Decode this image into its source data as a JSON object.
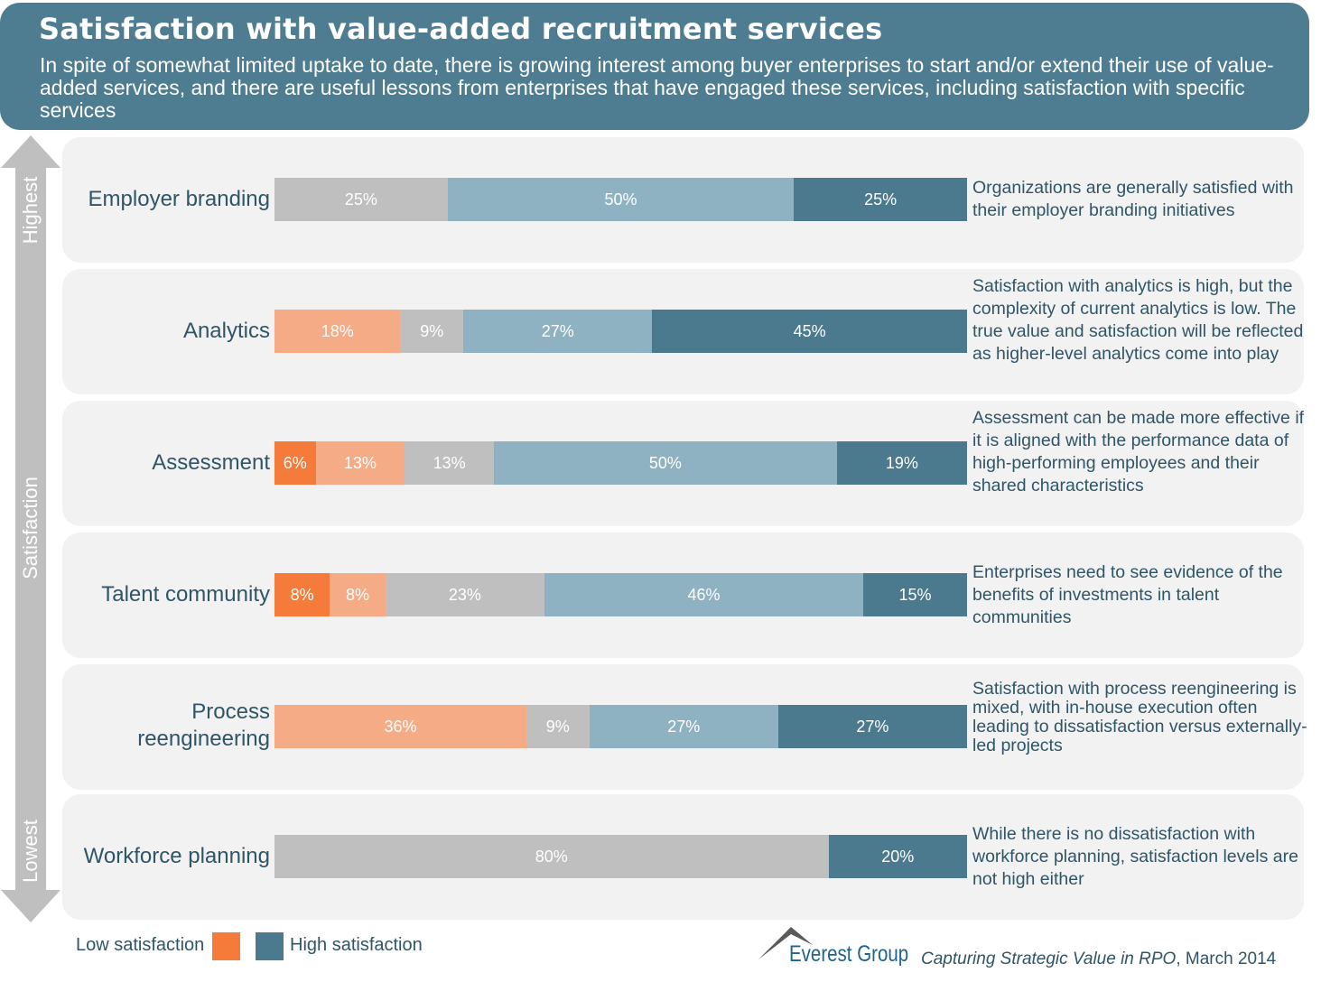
{
  "header": {
    "title": "Satisfaction with value-added recruitment services",
    "subtitle": "In spite of somewhat limited uptake to date, there is growing interest among buyer enterprises to start and/or extend their use of value-added services, and there are useful lessons from enterprises that have engaged these services, including satisfaction with specific services"
  },
  "axis": {
    "top": "Highest",
    "middle": "Satisfaction",
    "bottom": "Lowest"
  },
  "colors": {
    "header": "#4E7C90",
    "very_low": "#F47B3A",
    "low": "#F5AC86",
    "neutral": "#BFBFBF",
    "high": "#8EB2C2",
    "very_high": "#4B7A8F",
    "panel": "#F2F2F2"
  },
  "legend": {
    "low": "Low satisfaction",
    "high": "High satisfaction"
  },
  "footer": {
    "brand": "Everest Group",
    "source": "Capturing Strategic Value in RPO",
    "date": ", March 2014"
  },
  "chart_data": {
    "type": "bar",
    "orientation": "horizontal",
    "stacked": true,
    "percent": true,
    "categories": [
      "Employer branding",
      "Analytics",
      "Assessment",
      "Talent community",
      "Process reengineering",
      "Workforce planning"
    ],
    "series": [
      {
        "color": "#F47B3A",
        "values": [
          0,
          0,
          6,
          8,
          0,
          0
        ]
      },
      {
        "color": "#F5AC86",
        "values": [
          0,
          18,
          13,
          8,
          36,
          0
        ]
      },
      {
        "color": "#BFBFBF",
        "values": [
          25,
          9,
          13,
          23,
          9,
          80
        ]
      },
      {
        "color": "#8EB2C2",
        "values": [
          50,
          27,
          50,
          46,
          27,
          0
        ]
      },
      {
        "color": "#4B7A8F",
        "values": [
          25,
          45,
          19,
          15,
          27,
          20
        ]
      }
    ],
    "annotations": [
      "Organizations are generally satisfied with their employer branding initiatives",
      "Satisfaction with analytics is high, but the complexity of current analytics is low. The true value and satisfaction will be reflected as higher-level analytics come into play",
      "Assessment can be made more effective if it is aligned with the performance data of high-performing employees and their shared characteristics",
      "Enterprises need to see evidence of the benefits of investments in talent communities",
      "Satisfaction with process reengineering is mixed, with in-house execution often leading to dissatisfaction versus externally-led projects",
      "While there is no dissatisfaction with workforce planning, satisfaction levels are not high either"
    ],
    "legend_placement": "bottom-left"
  }
}
